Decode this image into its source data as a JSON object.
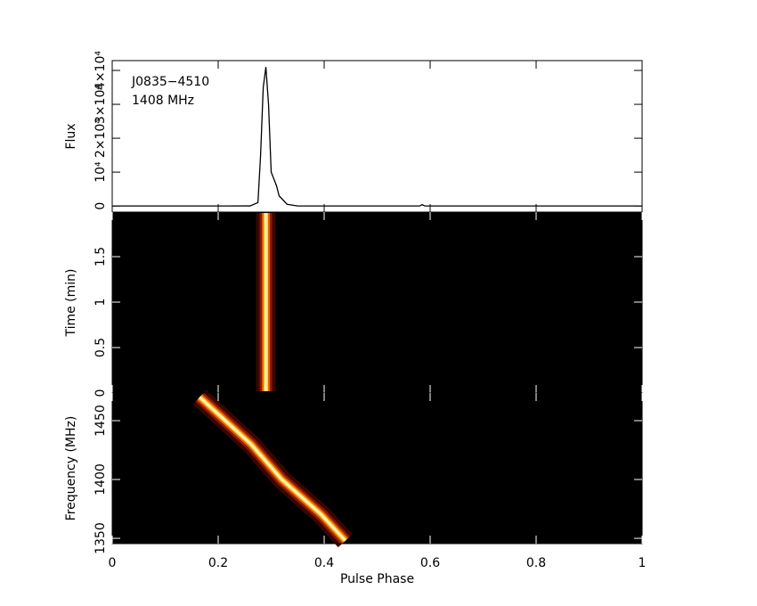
{
  "chart_data": [
    {
      "type": "line",
      "ylabel": "Flux",
      "annotations": [
        "J0835−4510",
        "1408 MHz"
      ],
      "xlim": [
        0,
        1
      ],
      "ylim": [
        -1800,
        42900
      ],
      "yticks": [
        0,
        {
          "value": 10000,
          "label": "10⁴"
        },
        {
          "value": 20000,
          "label": "2×10⁴"
        },
        {
          "value": 30000,
          "label": "3×10⁴"
        },
        {
          "value": 40000,
          "label": "4×10⁴"
        }
      ],
      "color": "#000000",
      "x": [
        0,
        0.26,
        0.275,
        0.28,
        0.285,
        0.29,
        0.295,
        0.3,
        0.305,
        0.31,
        0.315,
        0.33,
        0.35,
        0.58,
        0.585,
        0.59,
        1
      ],
      "values": [
        0,
        20,
        1000,
        15000,
        35000,
        41000,
        30000,
        10000,
        8000,
        6000,
        3000,
        500,
        0,
        0,
        400,
        0,
        0
      ]
    },
    {
      "type": "heatmap",
      "ylabel": "Time (min)",
      "xlim": [
        0,
        1
      ],
      "ylim": [
        0,
        1.99
      ],
      "yticks": [
        0,
        0.5,
        1,
        1.5
      ],
      "x": [
        0.29,
        0.29,
        0.29,
        0.29,
        0.29
      ],
      "values": [
        0.02,
        0.5,
        1,
        1.5,
        1.98
      ]
    },
    {
      "type": "heatmap",
      "ylabel": "Frequency (MHz)",
      "xlabel": "Pulse Phase",
      "xlim": [
        0,
        1
      ],
      "ylim": [
        1345.5,
        1473.5
      ],
      "yticks": [
        1350,
        1400,
        1450
      ],
      "xticks": [
        0,
        0.2,
        0.4,
        0.6,
        0.8,
        1
      ],
      "x": [
        0.44,
        0.395,
        0.32,
        0.262,
        0.165
      ],
      "values": [
        1348,
        1370,
        1400,
        1430,
        1470
      ]
    }
  ]
}
